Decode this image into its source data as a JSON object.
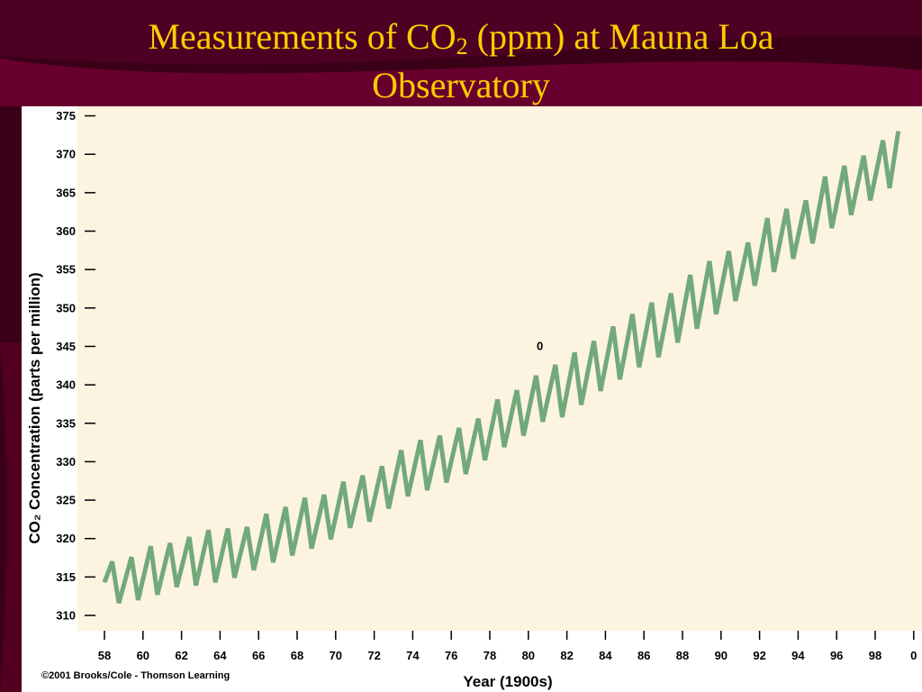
{
  "slide": {
    "title_part1": "Measurements of CO",
    "title_sub": "2",
    "title_part2": " (ppm) at Mauna Loa",
    "title_line2": "Observatory",
    "title_color": "#ffcc00",
    "background_color": "#3a0018",
    "accent_color": "#6b0033"
  },
  "chart_data": {
    "type": "line",
    "ylabel": "CO₂ Concentration (parts per million)",
    "xlabel": "Year (1900s)",
    "x_ticks": [
      "58",
      "60",
      "62",
      "64",
      "66",
      "68",
      "70",
      "72",
      "74",
      "76",
      "78",
      "80",
      "82",
      "84",
      "86",
      "88",
      "90",
      "92",
      "94",
      "96",
      "98",
      "0"
    ],
    "x_tick_values": [
      58,
      60,
      62,
      64,
      66,
      68,
      70,
      72,
      74,
      76,
      78,
      80,
      82,
      84,
      86,
      88,
      90,
      92,
      94,
      96,
      98,
      100
    ],
    "y_ticks": [
      "375",
      "370",
      "365",
      "360",
      "355",
      "350",
      "345",
      "340",
      "335",
      "330",
      "325",
      "320",
      "315",
      "310"
    ],
    "y_tick_values": [
      375,
      370,
      365,
      360,
      355,
      350,
      345,
      340,
      335,
      330,
      325,
      320,
      315,
      310
    ],
    "xlim": [
      58,
      100
    ],
    "ylim": [
      310,
      375
    ],
    "annotation": "0",
    "annotation_x": 80.6,
    "annotation_y": 345,
    "copyright": "©2001 Brooks/Cole - Thomson Learning",
    "grid": false,
    "plot_background": "#fdf3e1",
    "series": [
      {
        "color": "#72a97a",
        "x": [
          58.0,
          58.4,
          58.75,
          59.4,
          59.75,
          60.4,
          60.75,
          61.4,
          61.75,
          62.4,
          62.75,
          63.4,
          63.75,
          64.4,
          64.75,
          65.4,
          65.75,
          66.4,
          66.75,
          67.4,
          67.75,
          68.4,
          68.75,
          69.4,
          69.75,
          70.4,
          70.75,
          71.4,
          71.75,
          72.4,
          72.75,
          73.4,
          73.75,
          74.4,
          74.75,
          75.4,
          75.75,
          76.4,
          76.75,
          77.4,
          77.75,
          78.4,
          78.75,
          79.4,
          79.75,
          80.4,
          80.75,
          81.4,
          81.75,
          82.4,
          82.75,
          83.4,
          83.75,
          84.4,
          84.75,
          85.4,
          85.75,
          86.4,
          86.75,
          87.4,
          87.75,
          88.4,
          88.75,
          89.4,
          89.75,
          90.4,
          90.75,
          91.4,
          91.75,
          92.4,
          92.75,
          93.4,
          93.75,
          94.4,
          94.75,
          95.4,
          95.75,
          96.4,
          96.75,
          97.4,
          97.75,
          98.4,
          98.75,
          99.2
        ],
        "values": [
          314.3,
          317.0,
          311.6,
          317.6,
          312.0,
          319.0,
          312.7,
          319.4,
          313.7,
          320.2,
          313.9,
          321.1,
          314.3,
          321.3,
          314.9,
          321.5,
          315.9,
          323.2,
          316.9,
          324.1,
          317.8,
          325.3,
          318.7,
          325.7,
          319.9,
          327.4,
          321.4,
          328.2,
          322.2,
          329.4,
          323.9,
          331.5,
          325.5,
          332.8,
          326.3,
          333.4,
          327.3,
          334.4,
          328.4,
          335.6,
          330.2,
          338.1,
          331.9,
          339.3,
          333.4,
          341.2,
          335.2,
          342.6,
          335.8,
          344.2,
          337.4,
          345.7,
          339.2,
          347.6,
          340.7,
          349.2,
          342.3,
          350.7,
          343.6,
          351.9,
          345.5,
          354.3,
          347.3,
          356.1,
          349.2,
          357.4,
          350.9,
          358.5,
          352.9,
          361.7,
          354.7,
          362.9,
          356.4,
          364.0,
          358.4,
          367.1,
          360.4,
          368.5,
          362.1,
          369.8,
          364.0,
          371.8,
          365.6,
          373.0
        ]
      }
    ]
  }
}
